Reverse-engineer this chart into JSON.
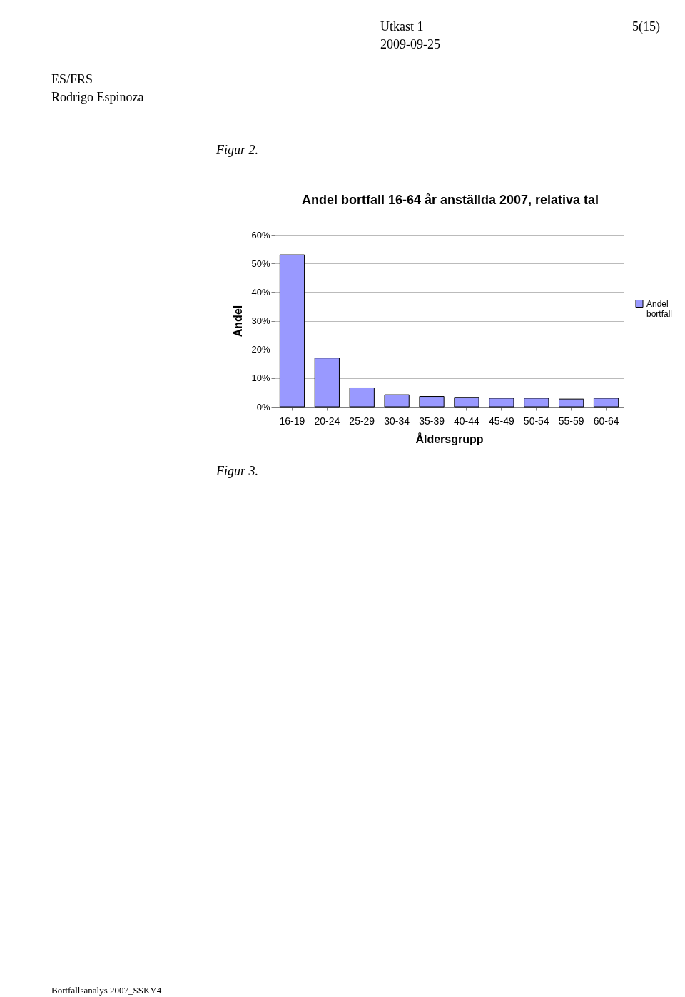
{
  "chart_data": {
    "type": "bar",
    "title": "Andel bortfall 16-64 år anställda 2007, relativa tal",
    "xlabel": "Åldersgrupp",
    "ylabel": "Andel",
    "categories": [
      "16-19",
      "20-24",
      "25-29",
      "30-34",
      "35-39",
      "40-44",
      "45-49",
      "50-54",
      "55-59",
      "60-64"
    ],
    "series": [
      {
        "name": "Andel bortfall",
        "color": "#9999ff",
        "values": [
          53,
          17,
          6.6,
          4.2,
          3.6,
          3.3,
          3.0,
          3.0,
          2.7,
          3.0
        ]
      }
    ],
    "ylim": [
      0,
      60
    ],
    "yticks": [
      {
        "value": 0,
        "label": "0%"
      },
      {
        "value": 10,
        "label": "10%"
      },
      {
        "value": 20,
        "label": "20%"
      },
      {
        "value": 30,
        "label": "30%"
      },
      {
        "value": 40,
        "label": "40%"
      },
      {
        "value": 50,
        "label": "50%"
      },
      {
        "value": 60,
        "label": "60%"
      }
    ],
    "grid": "y",
    "legend": "right",
    "annotations": [
      "Utkast 1",
      "5(15)",
      "2009-09-25",
      "ES/FRS",
      "Rodrigo Espinoza",
      "Figur 2.",
      "Figur 3.",
      "Bortfallsanalys 2007_SSKY4"
    ]
  }
}
